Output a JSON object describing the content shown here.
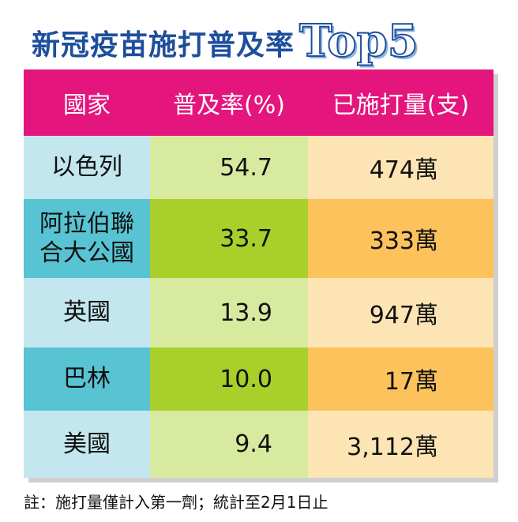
{
  "title": {
    "text": "新冠疫苗施打普及率",
    "badge": "Top5"
  },
  "table": {
    "header": [
      "國家",
      "普及率(%)",
      "已施打量(支)"
    ],
    "rows": [
      [
        "以色列",
        "54.7",
        "474萬"
      ],
      [
        "阿拉伯聯合大公國",
        "33.7",
        "333萬"
      ],
      [
        "英國",
        "13.9",
        "947萬"
      ],
      [
        "巴林",
        "10.0",
        "17萬"
      ],
      [
        "美國",
        "9.4",
        "3,112萬"
      ]
    ]
  },
  "note": "註：施打量僅計入第一劑；統計至2月1日止"
}
